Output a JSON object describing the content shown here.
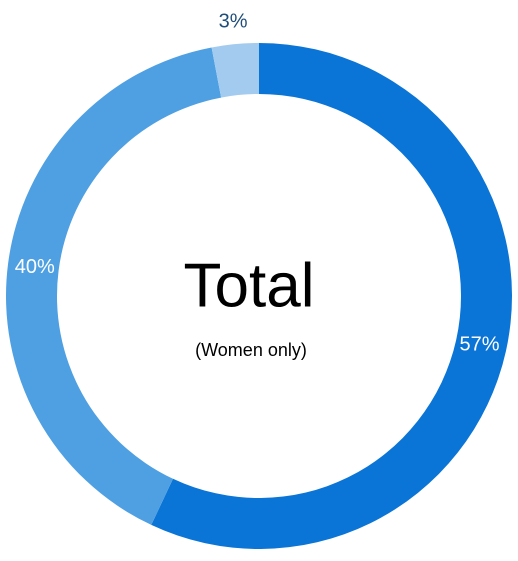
{
  "chart_data": {
    "type": "donut",
    "title": "Total",
    "subtitle": "(Women only)",
    "values": [
      57,
      40,
      3
    ],
    "value_labels": [
      "57%",
      "40%",
      "3%"
    ],
    "colors": [
      "#0a75d6",
      "#4fa0e2",
      "#a3cbef"
    ]
  }
}
